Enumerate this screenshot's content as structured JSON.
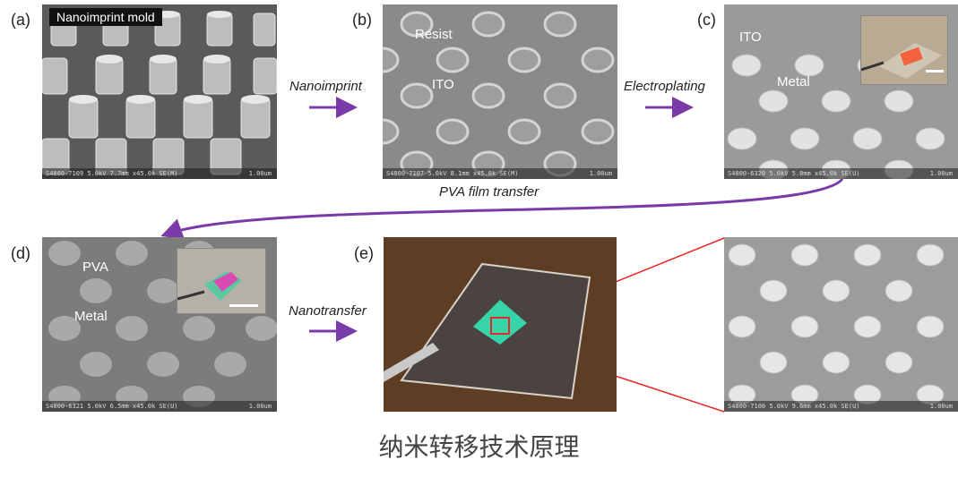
{
  "panels": {
    "a": {
      "label": "(a)",
      "tag": "Nanoimprint mold",
      "footer": "S4800-7109 5.0kV 7.7mm x45.0k SE(M)",
      "scale": "1.00um"
    },
    "b": {
      "label": "(b)",
      "footer": "S4800-7107 5.0kV 8.1mm x45.0k SE(M)",
      "scale": "1.00um",
      "annotations": [
        "Resist",
        "ITO"
      ]
    },
    "c": {
      "label": "(c)",
      "footer": "S4800-6320 5.0kV 5.8mm x45.0k SE(U)",
      "scale": "1.00um",
      "annotations": [
        "ITO",
        "Metal"
      ]
    },
    "d": {
      "label": "(d)",
      "footer": "S4800-6321 5.0kV 6.5mm x45.0k SE(U)",
      "scale": "1.00um",
      "annotations": [
        "PVA",
        "Metal"
      ]
    },
    "e": {
      "label": "(e)"
    },
    "zoom": {
      "footer": "S4800-7100 5.0kV 9.6mm x45.0k SE(U)",
      "scale": "1.00um"
    }
  },
  "steps": {
    "nanoimprint": "Nanoimprint",
    "electroplating": "Electroplating",
    "pva_transfer": "PVA film transfer",
    "nanotransfer": "Nanotransfer"
  },
  "caption": "纳米转移技术原理",
  "colors": {
    "arrow": "#7a3aa8",
    "zoom_lines": "#e8262a"
  }
}
